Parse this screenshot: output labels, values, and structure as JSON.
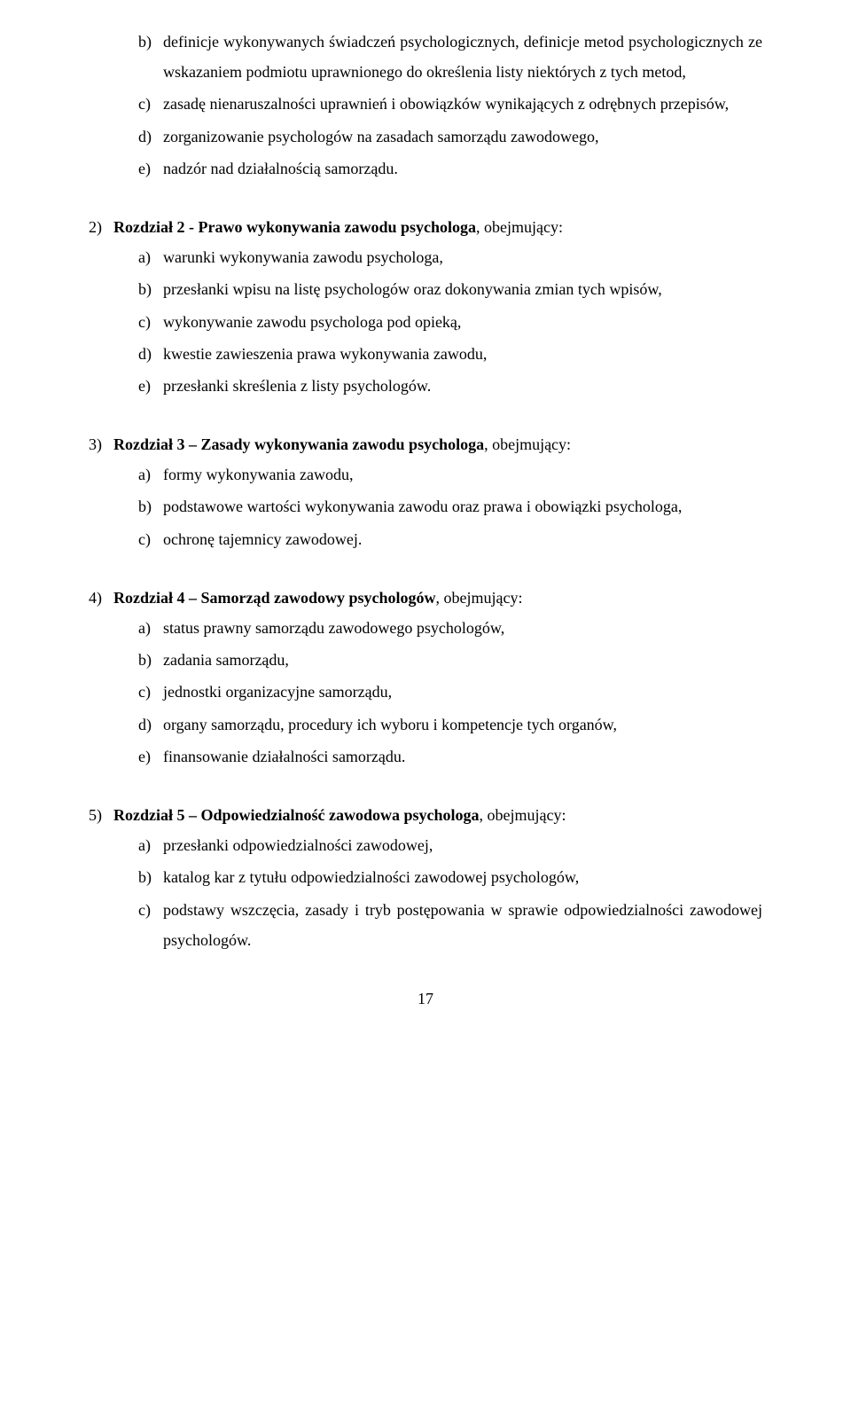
{
  "sections": [
    {
      "main": null,
      "items": [
        {
          "marker": "b)",
          "text": "definicje wykonywanych świadczeń psychologicznych, definicje metod psychologicznych ze wskazaniem podmiotu uprawnionego do określenia listy niektórych z tych metod,"
        },
        {
          "marker": "c)",
          "text": "zasadę nienaruszalności uprawnień i obowiązków wynikających z odrębnych przepisów,"
        },
        {
          "marker": "d)",
          "text": "zorganizowanie psychologów na zasadach samorządu zawodowego,"
        },
        {
          "marker": "e)",
          "text": "nadzór nad działalnością samorządu."
        }
      ]
    },
    {
      "main": {
        "marker": "2)",
        "bold": "Rozdział 2 - Prawo wykonywania zawodu psychologa",
        "rest": ", obejmujący:"
      },
      "items": [
        {
          "marker": "a)",
          "text": "warunki wykonywania zawodu psychologa,"
        },
        {
          "marker": "b)",
          "text": "przesłanki wpisu na listę psychologów oraz dokonywania zmian tych wpisów,"
        },
        {
          "marker": "c)",
          "text": "wykonywanie zawodu psychologa pod opieką,"
        },
        {
          "marker": "d)",
          "text": "kwestie zawieszenia prawa wykonywania zawodu,"
        },
        {
          "marker": "e)",
          "text": "przesłanki skreślenia z listy psychologów."
        }
      ]
    },
    {
      "main": {
        "marker": "3)",
        "bold": "Rozdział 3 – Zasady wykonywania zawodu psychologa",
        "rest": ", obejmujący:"
      },
      "items": [
        {
          "marker": "a)",
          "text": "formy wykonywania zawodu,"
        },
        {
          "marker": "b)",
          "text": "podstawowe wartości wykonywania zawodu oraz prawa i obowiązki psychologa,"
        },
        {
          "marker": "c)",
          "text": "ochronę tajemnicy zawodowej."
        }
      ]
    },
    {
      "main": {
        "marker": "4)",
        "bold": "Rozdział 4 – Samorząd zawodowy psychologów",
        "rest": ", obejmujący:"
      },
      "items": [
        {
          "marker": "a)",
          "text": "status prawny samorządu zawodowego psychologów,"
        },
        {
          "marker": "b)",
          "text": "zadania samorządu,"
        },
        {
          "marker": "c)",
          "text": "jednostki organizacyjne samorządu,"
        },
        {
          "marker": "d)",
          "text": "organy samorządu, procedury ich wyboru i kompetencje tych organów,"
        },
        {
          "marker": "e)",
          "text": "finansowanie działalności samorządu."
        }
      ]
    },
    {
      "main": {
        "marker": "5)",
        "bold": "Rozdział 5 – Odpowiedzialność zawodowa psychologa",
        "rest": ", obejmujący:"
      },
      "items": [
        {
          "marker": "a)",
          "text": "przesłanki odpowiedzialności zawodowej,"
        },
        {
          "marker": "b)",
          "text": "katalog kar z tytułu odpowiedzialności zawodowej psychologów,"
        },
        {
          "marker": "c)",
          "text": "podstawy wszczęcia, zasady i tryb postępowania w sprawie odpowiedzialności zawodowej psychologów."
        }
      ]
    }
  ],
  "pageNumber": "17"
}
